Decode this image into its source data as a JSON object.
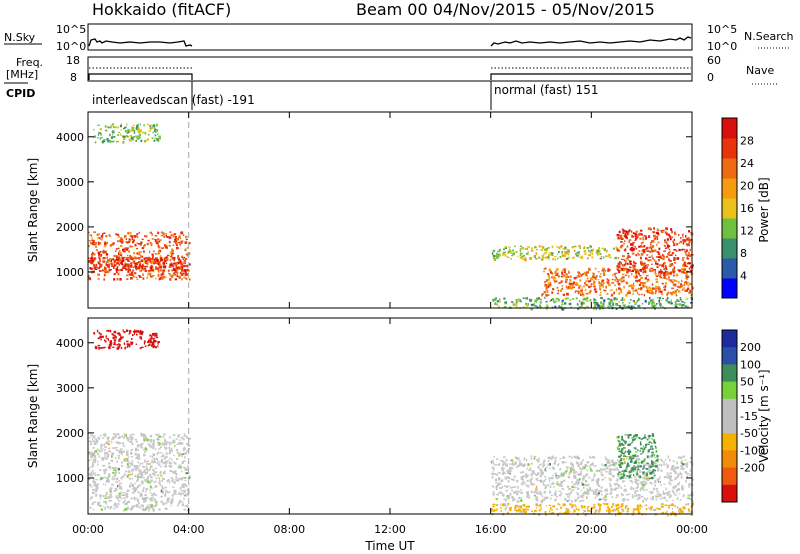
{
  "header": {
    "station": "Hokkaido (fitACF)",
    "beam_info": "Beam 00  04/Nov/2015 - 05/Nov/2015"
  },
  "top_panels": {
    "nsky_label": "N.Sky",
    "nsky_ticks": [
      "10^5",
      "10^0"
    ],
    "nsearch_label": "N.Search",
    "nsearch_ticks": [
      "10^5",
      "10^0"
    ],
    "freq_label_1": "Freq.",
    "freq_label_2": "[MHz]",
    "freq_ticks": [
      "18",
      "8"
    ],
    "nave_label": "Nave",
    "nave_ticks": [
      "60",
      "0"
    ],
    "cpid_label": "CPID",
    "cpid_segments": [
      {
        "text": "interleavedscan (fast) -191",
        "start_hour": 0,
        "end_hour": 4
      },
      {
        "text": "normal (fast) 151",
        "start_hour": 16,
        "end_hour": 24
      }
    ]
  },
  "colors": {
    "power_scale": [
      "#0000ff",
      "#2b5aa8",
      "#3a8f6c",
      "#6fc03f",
      "#e8c21b",
      "#f59b0e",
      "#f06a12",
      "#e9330d",
      "#d80f0f"
    ],
    "velocity_scale": [
      "#1c2a9e",
      "#2a4fa8",
      "#3c8f5a",
      "#77d23a",
      "#bfbfbf",
      "#bfbfbf",
      "#f6b000",
      "#f28a0a",
      "#ef5a10",
      "#d8100e"
    ],
    "noise": "#c8c8c8"
  },
  "chart_data": [
    {
      "type": "heatmap",
      "name": "power",
      "ylabel": "Slant Range [km]",
      "xlabel": "",
      "ylim": [
        200,
        4550
      ],
      "xlim": [
        0,
        24
      ],
      "yticks": [
        "1000",
        "2000",
        "3000",
        "4000"
      ],
      "ytick_values": [
        1000,
        2000,
        3000,
        4000
      ],
      "colorbar_label": "Power [dB]",
      "colorbar_ticks": [
        "4",
        "8",
        "12",
        "16",
        "20",
        "24",
        "28"
      ],
      "colorbar_range": [
        0,
        32
      ],
      "data_gap_hours": [
        4,
        16
      ],
      "features": [
        {
          "hours": [
            0,
            4
          ],
          "range_km": [
            850,
            1900
          ],
          "level": 26
        },
        {
          "hours": [
            0,
            4
          ],
          "range_km": [
            1050,
            1350
          ],
          "level": 30
        },
        {
          "hours": [
            0.2,
            2.8
          ],
          "range_km": [
            3900,
            4300
          ],
          "level": 12
        },
        {
          "hours": [
            16,
            21
          ],
          "range_km": [
            1300,
            1600
          ],
          "level": 14
        },
        {
          "hours": [
            18,
            24
          ],
          "range_km": [
            500,
            1100
          ],
          "level": 24
        },
        {
          "hours": [
            21,
            24
          ],
          "range_km": [
            1000,
            2000
          ],
          "level": 28
        },
        {
          "hours": [
            16,
            24
          ],
          "range_km": [
            200,
            450
          ],
          "level": 10
        }
      ]
    },
    {
      "type": "heatmap",
      "name": "velocity",
      "ylabel": "Slant Range [km]",
      "xlabel": "Time UT",
      "ylim": [
        200,
        4550
      ],
      "xlim": [
        0,
        24
      ],
      "yticks": [
        "1000",
        "2000",
        "3000",
        "4000"
      ],
      "ytick_values": [
        1000,
        2000,
        3000,
        4000
      ],
      "xticks": [
        "00:00",
        "04:00",
        "08:00",
        "12:00",
        "16:00",
        "20:00",
        "00:00"
      ],
      "xtick_values": [
        0,
        4,
        8,
        12,
        16,
        20,
        24
      ],
      "colorbar_label": "Velocity [m s⁻¹]",
      "colorbar_ticks": [
        "200",
        "100",
        "50",
        "15",
        "-15",
        "-50",
        "-100",
        "-200"
      ],
      "data_gap_hours": [
        4,
        16
      ],
      "features": [
        {
          "hours": [
            0,
            4
          ],
          "range_km": [
            300,
            2000
          ],
          "level": 0
        },
        {
          "hours": [
            0.2,
            2.8
          ],
          "range_km": [
            3900,
            4300
          ],
          "level": -220
        },
        {
          "hours": [
            16,
            24
          ],
          "range_km": [
            500,
            1500
          ],
          "level": 0
        },
        {
          "hours": [
            21,
            22.6
          ],
          "range_km": [
            1000,
            2000
          ],
          "level": 60
        },
        {
          "hours": [
            16,
            24
          ],
          "range_km": [
            200,
            450
          ],
          "level": -60
        }
      ]
    }
  ]
}
